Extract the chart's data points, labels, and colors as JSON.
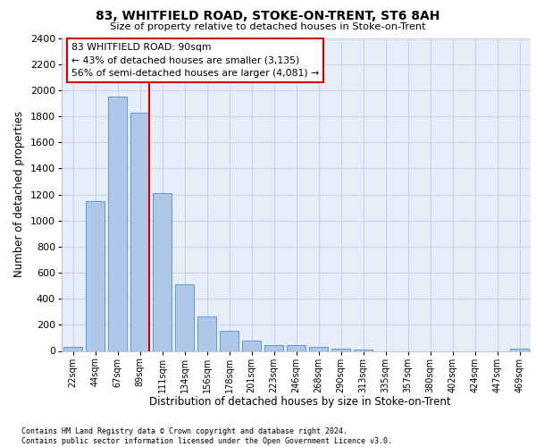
{
  "title": "83, WHITFIELD ROAD, STOKE-ON-TRENT, ST6 8AH",
  "subtitle": "Size of property relative to detached houses in Stoke-on-Trent",
  "xlabel": "Distribution of detached houses by size in Stoke-on-Trent",
  "ylabel": "Number of detached properties",
  "bar_categories": [
    "22sqm",
    "44sqm",
    "67sqm",
    "89sqm",
    "111sqm",
    "134sqm",
    "156sqm",
    "178sqm",
    "201sqm",
    "223sqm",
    "246sqm",
    "268sqm",
    "290sqm",
    "313sqm",
    "335sqm",
    "357sqm",
    "380sqm",
    "402sqm",
    "424sqm",
    "447sqm",
    "469sqm"
  ],
  "bar_values": [
    30,
    1150,
    1950,
    1830,
    1210,
    510,
    265,
    155,
    80,
    48,
    42,
    30,
    18,
    12,
    0,
    0,
    0,
    0,
    0,
    0,
    18
  ],
  "bar_color": "#aec6e8",
  "bar_edge_color": "#5b9bd5",
  "vline_color": "#cc0000",
  "vline_x_index": 3.425,
  "annotation_text": "83 WHITFIELD ROAD: 90sqm\n← 43% of detached houses are smaller (3,135)\n56% of semi-detached houses are larger (4,081) →",
  "ann_box_facecolor": "#ffffff",
  "ann_box_edgecolor": "#cc0000",
  "ylim": [
    0,
    2400
  ],
  "yticks": [
    0,
    200,
    400,
    600,
    800,
    1000,
    1200,
    1400,
    1600,
    1800,
    2000,
    2200,
    2400
  ],
  "grid_color": "#c8d4e4",
  "bg_color": "#e8eef8",
  "footer_line1": "Contains HM Land Registry data © Crown copyright and database right 2024.",
  "footer_line2": "Contains public sector information licensed under the Open Government Licence v3.0."
}
